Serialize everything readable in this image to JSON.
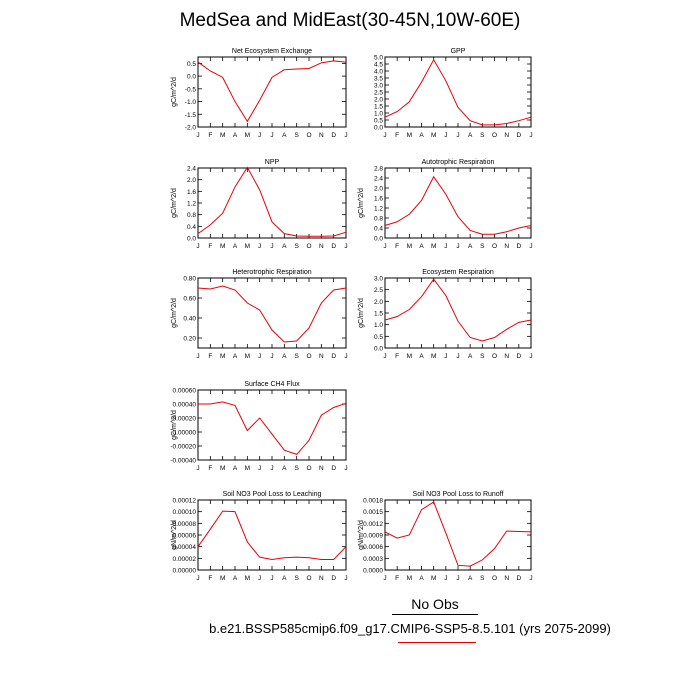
{
  "title": "MedSea and MidEast(30-45N,10W-60E)",
  "legend": {
    "obs_label": "No Obs",
    "case_label": "b.e21.BSSP585cmip6.f09_g17.CMIP6-SSP5-8.5.101 (yrs 2075-2099)",
    "case_color": "#e8000b",
    "obs_color": "#000000"
  },
  "chart_data": [
    {
      "type": "line",
      "title": "Net Ecosystem Exchange",
      "ylabel": "gC/m^2/d",
      "categories": [
        "J",
        "F",
        "M",
        "A",
        "M",
        "J",
        "J",
        "A",
        "S",
        "O",
        "N",
        "D",
        "J"
      ],
      "ylim": [
        -2.0,
        0.75
      ],
      "yticks": [
        "-2.0",
        "-1.5",
        "-1.0",
        "-0.5",
        "0.0",
        "0.5"
      ],
      "ytick_values": [
        -2.0,
        -1.5,
        -1.0,
        -0.5,
        0.0,
        0.5
      ],
      "series": [
        {
          "values": [
            0.55,
            0.2,
            -0.05,
            -1.0,
            -1.78,
            -0.95,
            -0.05,
            0.25,
            0.28,
            0.3,
            0.52,
            0.6,
            0.55
          ]
        }
      ]
    },
    {
      "type": "line",
      "title": "GPP",
      "ylabel": "",
      "categories": [
        "J",
        "F",
        "M",
        "A",
        "M",
        "J",
        "J",
        "A",
        "S",
        "O",
        "N",
        "D",
        "J"
      ],
      "ylim": [
        0,
        5
      ],
      "yticks": [
        "0.0",
        "0.5",
        "1.0",
        "1.5",
        "2.0",
        "2.5",
        "3.0",
        "3.5",
        "4.0",
        "4.5",
        "5.0"
      ],
      "ytick_values": [
        0,
        0.5,
        1,
        1.5,
        2,
        2.5,
        3,
        3.5,
        4,
        4.5,
        5
      ],
      "series": [
        {
          "values": [
            0.7,
            1.1,
            1.8,
            3.2,
            4.8,
            3.3,
            1.4,
            0.45,
            0.15,
            0.15,
            0.25,
            0.45,
            0.7
          ]
        }
      ]
    },
    {
      "type": "line",
      "title": "NPP",
      "ylabel": "gC/m^2/d",
      "categories": [
        "J",
        "F",
        "M",
        "A",
        "M",
        "J",
        "J",
        "A",
        "S",
        "O",
        "N",
        "D",
        "J"
      ],
      "ylim": [
        0,
        2.4
      ],
      "yticks": [
        "0.0",
        "0.4",
        "0.8",
        "1.2",
        "1.6",
        "2.0",
        "2.4"
      ],
      "ytick_values": [
        0,
        0.4,
        0.8,
        1.2,
        1.6,
        2.0,
        2.4
      ],
      "series": [
        {
          "values": [
            0.15,
            0.45,
            0.85,
            1.75,
            2.42,
            1.65,
            0.55,
            0.15,
            0.07,
            0.06,
            0.06,
            0.07,
            0.2
          ]
        }
      ]
    },
    {
      "type": "line",
      "title": "Autotrophic Respiration",
      "ylabel": "gC/m^2/d",
      "categories": [
        "J",
        "F",
        "M",
        "A",
        "M",
        "J",
        "J",
        "A",
        "S",
        "O",
        "N",
        "D",
        "J"
      ],
      "ylim": [
        0,
        2.8
      ],
      "yticks": [
        "0.0",
        "0.4",
        "0.8",
        "1.2",
        "1.6",
        "2.0",
        "2.4",
        "2.8"
      ],
      "ytick_values": [
        0,
        0.4,
        0.8,
        1.2,
        1.6,
        2.0,
        2.4,
        2.8
      ],
      "series": [
        {
          "values": [
            0.5,
            0.65,
            0.95,
            1.5,
            2.45,
            1.75,
            0.85,
            0.3,
            0.15,
            0.15,
            0.25,
            0.4,
            0.5
          ]
        }
      ]
    },
    {
      "type": "line",
      "title": "Heterotrophic Respiration",
      "ylabel": "gC/m^2/d",
      "categories": [
        "J",
        "F",
        "M",
        "A",
        "M",
        "J",
        "J",
        "A",
        "S",
        "O",
        "N",
        "D",
        "J"
      ],
      "ylim": [
        0.1,
        0.8
      ],
      "yticks": [
        "0.20",
        "0.40",
        "0.60",
        "0.80"
      ],
      "ytick_values": [
        0.2,
        0.4,
        0.6,
        0.8
      ],
      "series": [
        {
          "values": [
            0.7,
            0.69,
            0.72,
            0.68,
            0.55,
            0.48,
            0.28,
            0.16,
            0.17,
            0.3,
            0.55,
            0.68,
            0.7
          ]
        }
      ]
    },
    {
      "type": "line",
      "title": "Ecosystem Respiration",
      "ylabel": "gC/m^2/d",
      "categories": [
        "J",
        "F",
        "M",
        "A",
        "M",
        "J",
        "J",
        "A",
        "S",
        "O",
        "N",
        "D",
        "J"
      ],
      "ylim": [
        0,
        3
      ],
      "yticks": [
        "0.0",
        "0.5",
        "1.0",
        "1.5",
        "2.0",
        "2.5",
        "3.0"
      ],
      "ytick_values": [
        0,
        0.5,
        1,
        1.5,
        2,
        2.5,
        3
      ],
      "series": [
        {
          "values": [
            1.2,
            1.35,
            1.65,
            2.2,
            2.95,
            2.25,
            1.15,
            0.45,
            0.3,
            0.45,
            0.8,
            1.1,
            1.2
          ]
        }
      ]
    },
    {
      "type": "line",
      "title": "Surface CH4 Flux",
      "ylabel": "gC/m^2/d",
      "categories": [
        "J",
        "F",
        "M",
        "A",
        "M",
        "J",
        "J",
        "A",
        "S",
        "O",
        "N",
        "D",
        "J"
      ],
      "ylim": [
        -0.0004,
        0.0006
      ],
      "yticks": [
        "-0.00040",
        "-0.00020",
        "0.00000",
        "0.00020",
        "0.00040",
        "0.00060"
      ],
      "ytick_values": [
        -0.0004,
        -0.0002,
        0,
        0.0002,
        0.0004,
        0.0006
      ],
      "series": [
        {
          "values": [
            0.0004,
            0.0004,
            0.00043,
            0.00038,
            2e-05,
            0.0002,
            -3e-05,
            -0.00026,
            -0.00032,
            -0.00012,
            0.00024,
            0.00035,
            0.00041
          ]
        }
      ]
    },
    {
      "type": "line",
      "title": "Soil NO3 Pool Loss to Leaching",
      "ylabel": "gN/m^2/d",
      "categories": [
        "J",
        "F",
        "M",
        "A",
        "M",
        "J",
        "J",
        "A",
        "S",
        "O",
        "N",
        "D",
        "J"
      ],
      "ylim": [
        0,
        0.00012
      ],
      "yticks": [
        "0.00000",
        "0.00002",
        "0.00004",
        "0.00006",
        "0.00008",
        "0.00010",
        "0.00012"
      ],
      "ytick_values": [
        0,
        2e-05,
        4e-05,
        6e-05,
        8e-05,
        0.0001,
        0.00012
      ],
      "series": [
        {
          "values": [
            4e-05,
            7e-05,
            0.000101,
            0.0001,
            4.8e-05,
            2.2e-05,
            1.8e-05,
            2.1e-05,
            2.2e-05,
            2.1e-05,
            1.8e-05,
            1.8e-05,
            4e-05
          ]
        }
      ]
    },
    {
      "type": "line",
      "title": "Soil NO3 Pool Loss to Runoff",
      "ylabel": "gN/m^2/d",
      "categories": [
        "J",
        "F",
        "M",
        "A",
        "M",
        "J",
        "J",
        "A",
        "S",
        "O",
        "N",
        "D",
        "J"
      ],
      "ylim": [
        0,
        0.0018
      ],
      "yticks": [
        "0.0000",
        "0.0003",
        "0.0006",
        "0.0009",
        "0.0012",
        "0.0015",
        "0.0018"
      ],
      "ytick_values": [
        0,
        0.0003,
        0.0006,
        0.0009,
        0.0012,
        0.0015,
        0.0018
      ],
      "series": [
        {
          "values": [
            0.00098,
            0.00082,
            0.0009,
            0.00155,
            0.00175,
            0.00095,
            0.00012,
            0.0001,
            0.00026,
            0.00055,
            0.001,
            0.00099,
            0.00098
          ]
        }
      ]
    }
  ]
}
